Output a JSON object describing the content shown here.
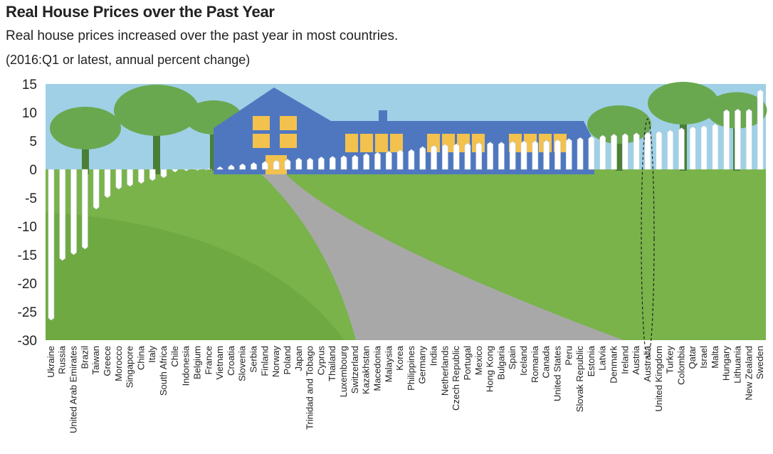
{
  "header": {
    "title": "Real House Prices over the Past Year",
    "subtitle": "Real house prices increased over the past year in most countries.",
    "note": "(2016:Q1 or latest, annual percent change)"
  },
  "colors": {
    "sky": "#9fd0e6",
    "grass": "#79b34a",
    "grass_dark": "#5c9a30",
    "road": "#a8a8a8",
    "house": "#4f77c0",
    "window": "#f2c14e",
    "tree": "#6aa84f",
    "trunk": "#4a7f35",
    "picket": "#ffffff",
    "picket_stroke": "#c9d3dc"
  },
  "chart_data": {
    "type": "bar",
    "ylim": [
      -30,
      15
    ],
    "yticks": [
      15,
      10,
      5,
      0,
      -5,
      -10,
      -15,
      -20,
      -25,
      -30
    ],
    "highlight": "Australia",
    "categories": [
      "Ukraine",
      "Russia",
      "United Arab Emirates",
      "Brazil",
      "Taiwan",
      "Greece",
      "Morocco",
      "Singapore",
      "China",
      "Italy",
      "South Africa",
      "Chile",
      "Indonesia",
      "Belgium",
      "France",
      "Vietnam",
      "Croatia",
      "Slovenia",
      "Serbia",
      "Finland",
      "Norway",
      "Poland",
      "Japan",
      "Trinidad and Tobago",
      "Cyprus",
      "Thailand",
      "Luxembourg",
      "Switzerland",
      "Kazakhstan",
      "Macedonia",
      "Malaysia",
      "Korea",
      "Philippines",
      "Germany",
      "India",
      "Netherlands",
      "Czech Republic",
      "Portugal",
      "Mexico",
      "Hong Kong",
      "Bulgaria",
      "Spain",
      "Iceland",
      "Romania",
      "Canada",
      "United States",
      "Peru",
      "Slovak Republic",
      "Estonia",
      "Latvia",
      "Denmark",
      "Ireland",
      "Austria",
      "Australia",
      "United Kingdom",
      "Turkey",
      "Colombia",
      "Qatar",
      "Israel",
      "Malta",
      "Hungary",
      "Lithuania",
      "New Zealand",
      "Sweden"
    ],
    "values": [
      -26.5,
      -16,
      -15,
      -14,
      -7,
      -5,
      -3.5,
      -3,
      -2.5,
      -2,
      -1.5,
      -0.5,
      -0.3,
      -0.2,
      0.2,
      0.5,
      0.8,
      1,
      1.2,
      1.4,
      1.6,
      1.8,
      2,
      2,
      2.2,
      2.3,
      2.4,
      2.5,
      2.8,
      3,
      3.2,
      3.4,
      3.5,
      4,
      4.2,
      4.4,
      4.5,
      4.6,
      4.7,
      4.8,
      4.8,
      4.9,
      5,
      5,
      5.1,
      5.2,
      5.4,
      5.6,
      5.8,
      6,
      6.2,
      6.3,
      6.4,
      6.5,
      6.7,
      6.9,
      7.3,
      7.5,
      7.7,
      8,
      10.5,
      10.6,
      10.6,
      14
    ]
  }
}
